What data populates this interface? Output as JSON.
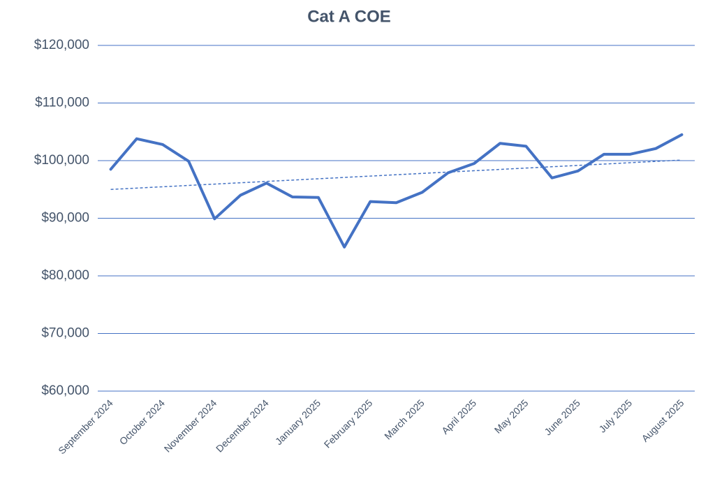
{
  "chart_data": {
    "type": "line",
    "title": "Cat A COE",
    "categories": [
      "September 2024",
      null,
      "October 2024",
      null,
      "November 2024",
      null,
      "December 2024",
      null,
      "January 2025",
      null,
      "February 2025",
      null,
      "March 2025",
      null,
      "April 2025",
      null,
      "May 2025",
      null,
      "June 2025",
      null,
      "July 2025",
      null,
      "August 2025"
    ],
    "series": [
      {
        "name": "Cat A COE",
        "color": "#4472c4",
        "values": [
          98500,
          103800,
          102800,
          99900,
          89900,
          94000,
          96100,
          93700,
          93600,
          85000,
          92900,
          92700,
          94500,
          97900,
          99500,
          103000,
          102500,
          97000,
          98200,
          101100,
          101100,
          102100,
          104500
        ]
      }
    ],
    "trendline": {
      "color": "#4472c4",
      "values": [
        95000,
        100100
      ]
    },
    "ylim": [
      60000,
      120000
    ],
    "yticks": [
      {
        "value": 60000,
        "label": "$60,000"
      },
      {
        "value": 70000,
        "label": "$70,000"
      },
      {
        "value": 80000,
        "label": "$80,000"
      },
      {
        "value": 90000,
        "label": "$90,000"
      },
      {
        "value": 100000,
        "label": "$100,000"
      },
      {
        "value": 110000,
        "label": "$110,000"
      },
      {
        "value": 120000,
        "label": "$120,000"
      }
    ],
    "grid": true
  }
}
